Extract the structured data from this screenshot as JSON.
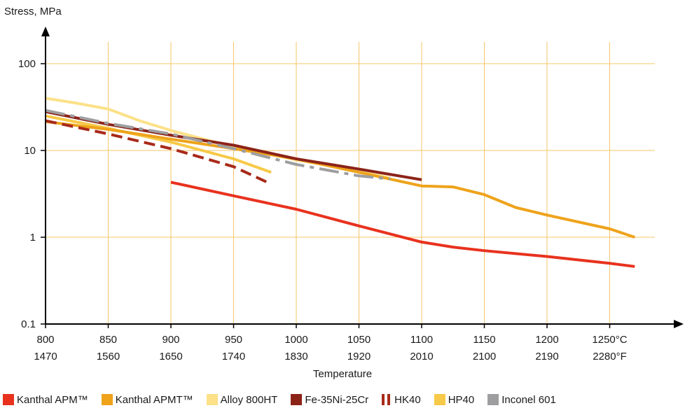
{
  "chart_data": {
    "type": "line",
    "ylabel": "Stress, MPa",
    "xlabel": "Temperature",
    "y_scale": "log",
    "ylim": [
      0.1,
      100
    ],
    "y_ticks": [
      "100",
      "10",
      "1",
      "0.1"
    ],
    "xlim": [
      800,
      1270
    ],
    "x_ticks_c": [
      "800",
      "850",
      "900",
      "950",
      "1000",
      "1050",
      "1100",
      "1150",
      "1200",
      "1250°C"
    ],
    "x_ticks_f": [
      "1470",
      "1560",
      "1650",
      "1740",
      "1830",
      "1920",
      "2010",
      "2100",
      "2190",
      "2280°F"
    ],
    "grid": true,
    "legend_position": "bottom",
    "series": [
      {
        "name": "Kanthal APM™",
        "color": "#e8321e",
        "style": "solid",
        "x": [
          900,
          950,
          1000,
          1050,
          1100,
          1125,
          1150,
          1200,
          1250,
          1270
        ],
        "y": [
          4.3,
          3.0,
          2.1,
          1.35,
          0.88,
          0.77,
          0.7,
          0.6,
          0.5,
          0.46
        ]
      },
      {
        "name": "Kanthal APMT™",
        "color": "#eea31b",
        "style": "solid",
        "x": [
          800,
          850,
          900,
          950,
          1000,
          1050,
          1100,
          1125,
          1150,
          1175,
          1200,
          1250,
          1270
        ],
        "y": [
          21.5,
          17.5,
          13.5,
          10.5,
          8.0,
          5.6,
          3.9,
          3.8,
          3.1,
          2.2,
          1.8,
          1.25,
          1.0
        ]
      },
      {
        "name": "Alloy 800HT",
        "color": "#fce188",
        "style": "solid",
        "x": [
          800,
          825,
          850,
          875,
          900,
          950,
          1000,
          1050,
          1075
        ],
        "y": [
          40,
          35,
          30,
          22,
          17,
          11,
          7.8,
          5.8,
          4.8
        ]
      },
      {
        "name": "Fe-35Ni-25Cr",
        "color": "#8c2318",
        "style": "solid",
        "x": [
          800,
          850,
          900,
          950,
          1000,
          1050,
          1100
        ],
        "y": [
          28,
          20,
          15,
          11.5,
          8.0,
          6.1,
          4.6
        ]
      },
      {
        "name": "HK40",
        "color": "#a82a1a",
        "style": "dashed",
        "x": [
          800,
          850,
          900,
          950,
          980
        ],
        "y": [
          22,
          15.5,
          10.5,
          6.5,
          4.1
        ]
      },
      {
        "name": "HP40",
        "color": "#f7c948",
        "style": "solid",
        "x": [
          800,
          850,
          900,
          950,
          980
        ],
        "y": [
          25,
          18,
          12.5,
          8.0,
          5.6
        ]
      },
      {
        "name": "Inconel 601",
        "color": "#9e9ea0",
        "style": "dashdot",
        "x": [
          800,
          850,
          900,
          950,
          1000,
          1050,
          1075
        ],
        "y": [
          29,
          20.5,
          15.5,
          10.5,
          6.9,
          5.1,
          4.7
        ]
      }
    ]
  }
}
